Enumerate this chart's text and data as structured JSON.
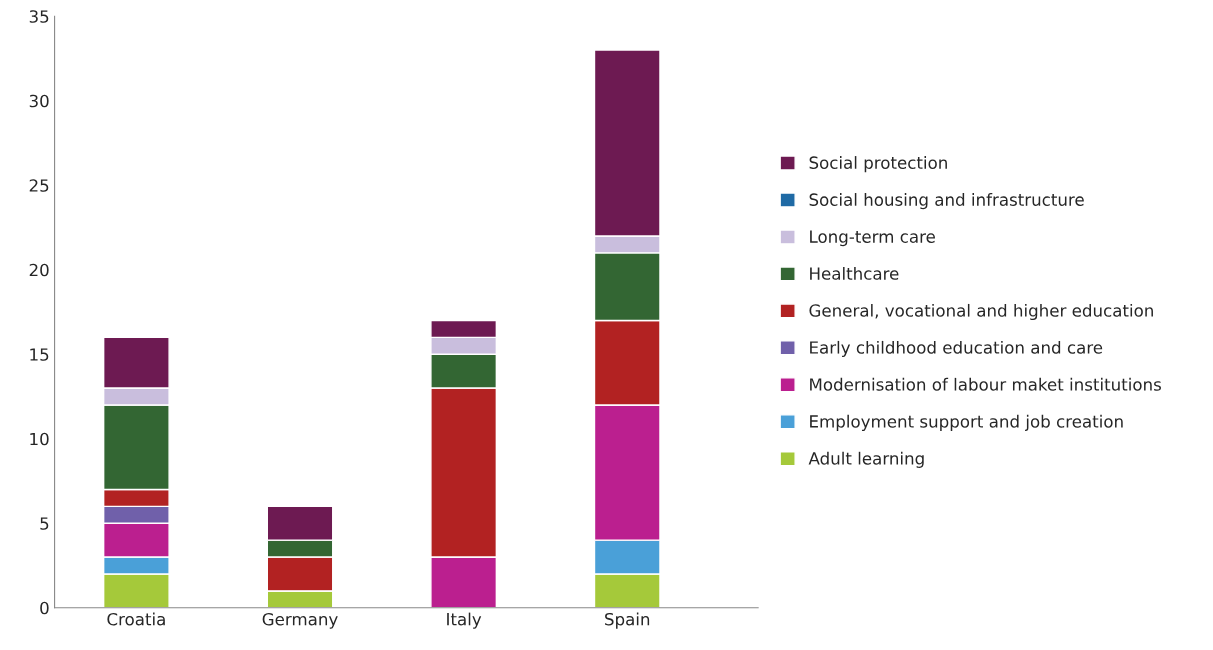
{
  "chart_data": {
    "type": "bar",
    "stacked": true,
    "categories": [
      "Croatia",
      "Germany",
      "Italy",
      "Spain"
    ],
    "series": [
      {
        "name": "Adult learning",
        "color": "#a5c93a",
        "values": [
          2,
          1,
          0,
          2
        ]
      },
      {
        "name": "Employment support and job creation",
        "color": "#4aa0d8",
        "values": [
          1,
          0,
          0,
          2
        ]
      },
      {
        "name": "Modernisation of labour maket institutions",
        "color": "#bb1f8f",
        "values": [
          2,
          0,
          3,
          8
        ]
      },
      {
        "name": "Early childhood education and care",
        "color": "#7060aa",
        "values": [
          1,
          0,
          0,
          0
        ]
      },
      {
        "name": "General, vocational and higher education",
        "color": "#b22222",
        "values": [
          1,
          2,
          10,
          5
        ]
      },
      {
        "name": "Healthcare",
        "color": "#336633",
        "values": [
          5,
          1,
          2,
          4
        ]
      },
      {
        "name": "Long-term care",
        "color": "#c9bedd",
        "values": [
          1,
          0,
          1,
          1
        ]
      },
      {
        "name": "Social housing and infrastructure",
        "color": "#1f6aa5",
        "values": [
          0,
          0,
          0,
          0
        ]
      },
      {
        "name": "Social protection",
        "color": "#6d1a52",
        "values": [
          3,
          2,
          1,
          11
        ]
      }
    ],
    "ylim": [
      0,
      35
    ],
    "yticks": [
      0,
      5,
      10,
      15,
      20,
      25,
      30,
      35
    ],
    "grid": false,
    "legend": "right"
  }
}
